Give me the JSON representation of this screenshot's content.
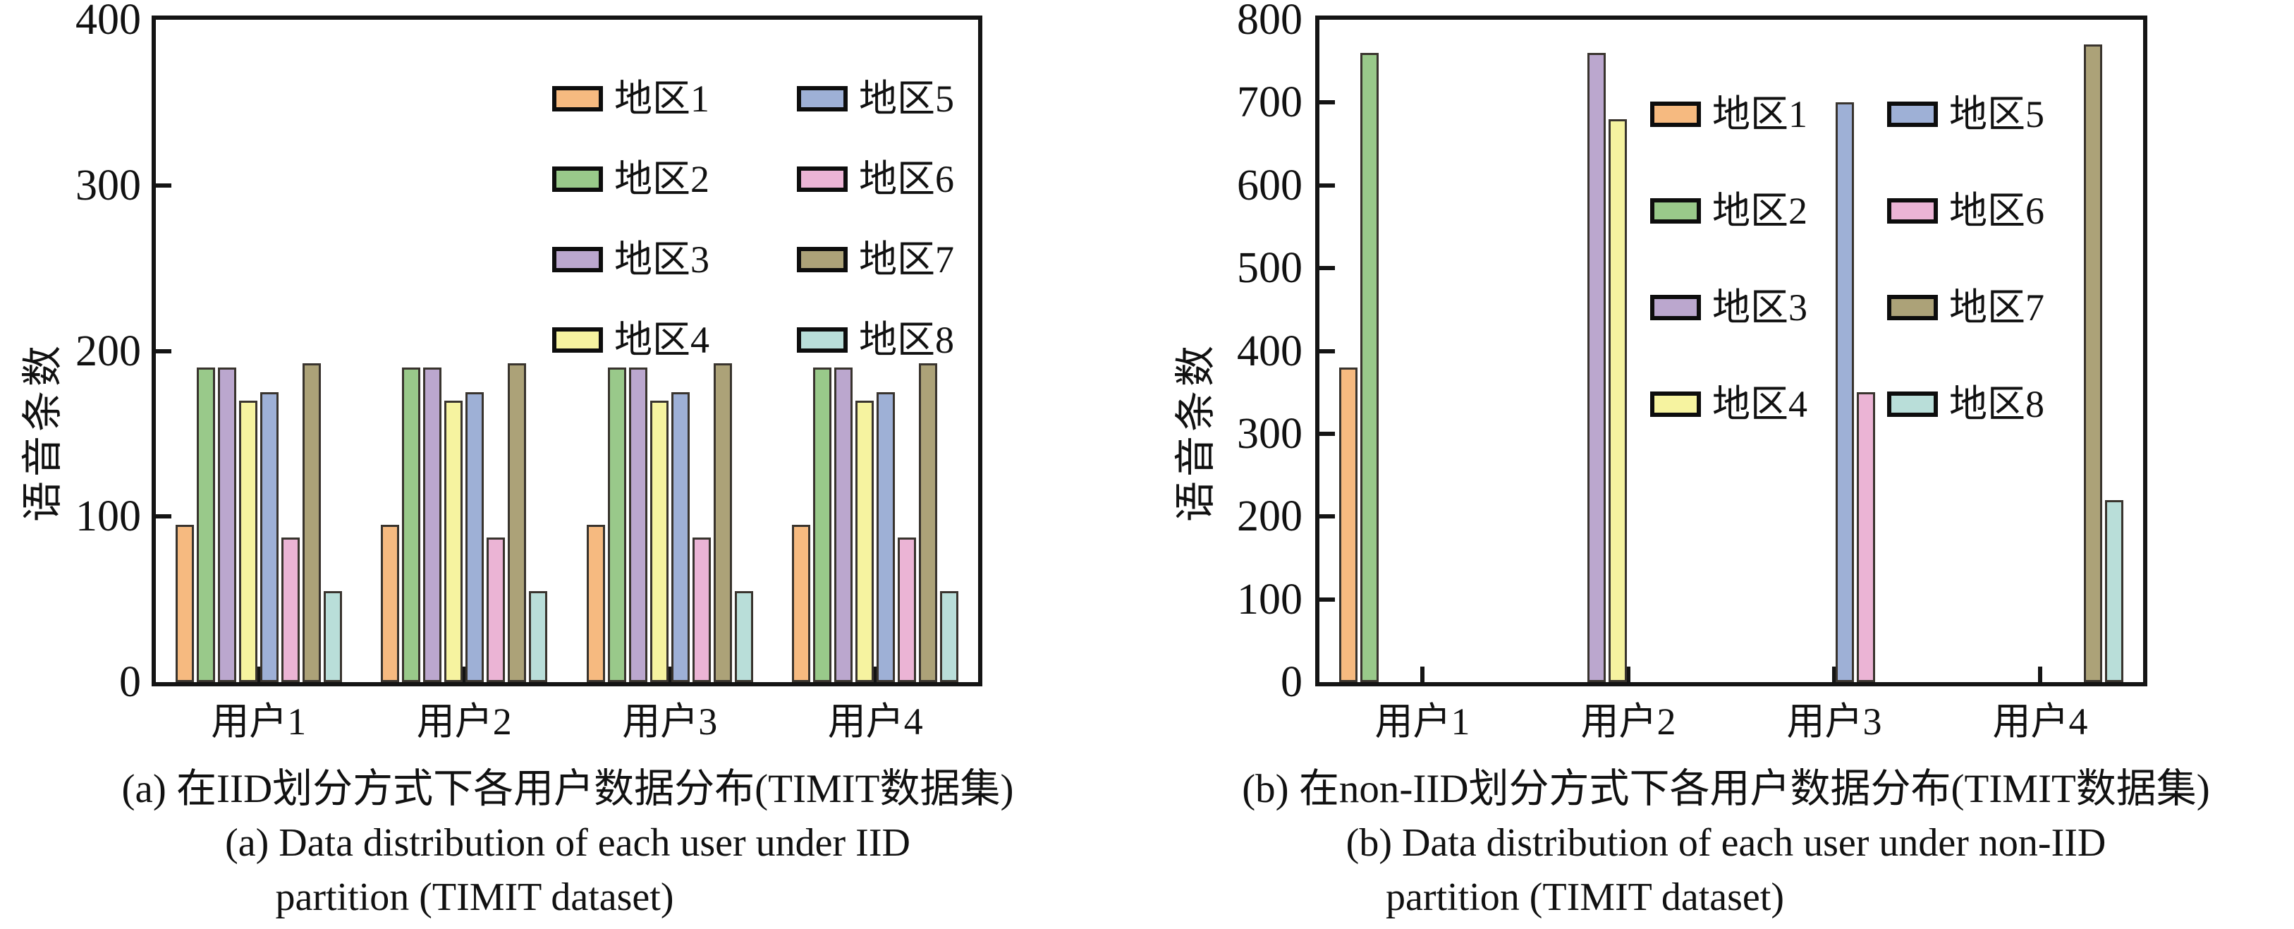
{
  "figure": {
    "background": "#ffffff",
    "frame_color": "#141414",
    "bar_edge_color": "#39342E"
  },
  "chart_data": [
    {
      "type": "bar",
      "panel_label": "a",
      "ylabel": "语音条数",
      "ylim": [
        0,
        400
      ],
      "yticks": [
        0,
        100,
        200,
        300,
        400
      ],
      "grid": false,
      "legend_position": "upper-center-two-columns",
      "categories": [
        "用户1",
        "用户2",
        "用户3",
        "用户4"
      ],
      "series": [
        {
          "name": "地区1",
          "color": "#F6BA80",
          "values": [
            95,
            95,
            95,
            95
          ]
        },
        {
          "name": "地区2",
          "color": "#99C98A",
          "values": [
            190,
            190,
            190,
            190
          ]
        },
        {
          "name": "地区3",
          "color": "#BBA7CE",
          "values": [
            190,
            190,
            190,
            190
          ]
        },
        {
          "name": "地区4",
          "color": "#F6F3A0",
          "values": [
            170,
            170,
            170,
            170
          ]
        },
        {
          "name": "地区5",
          "color": "#9EB0D6",
          "values": [
            175,
            175,
            175,
            175
          ]
        },
        {
          "name": "地区6",
          "color": "#EBB4D5",
          "values": [
            87.5,
            87.5,
            87.5,
            87.5
          ]
        },
        {
          "name": "地区7",
          "color": "#ACA278",
          "values": [
            192.5,
            192.5,
            192.5,
            192.5
          ]
        },
        {
          "name": "地区8",
          "color": "#B9DED9",
          "values": [
            55,
            55,
            55,
            55
          ]
        }
      ],
      "caption_zh": "(a) 在IID划分方式下各用户数据分布(TIMIT数据集)",
      "caption_en_line1": "(a) Data distribution of each user under IID",
      "caption_en_line2": "partition (TIMIT dataset)"
    },
    {
      "type": "bar",
      "panel_label": "b",
      "ylabel": "语音条数",
      "ylim": [
        0,
        800
      ],
      "yticks": [
        0,
        100,
        200,
        300,
        400,
        500,
        600,
        700,
        800
      ],
      "grid": false,
      "legend_position": "upper-right-two-columns",
      "categories": [
        "用户1",
        "用户2",
        "用户3",
        "用户4"
      ],
      "series": [
        {
          "name": "地区1",
          "color": "#F6BA80",
          "values": [
            380,
            0,
            0,
            0
          ]
        },
        {
          "name": "地区2",
          "color": "#99C98A",
          "values": [
            760,
            0,
            0,
            0
          ]
        },
        {
          "name": "地区3",
          "color": "#BBA7CE",
          "values": [
            0,
            760,
            0,
            0
          ]
        },
        {
          "name": "地区4",
          "color": "#F6F3A0",
          "values": [
            0,
            680,
            0,
            0
          ]
        },
        {
          "name": "地区5",
          "color": "#9EB0D6",
          "values": [
            0,
            0,
            700,
            0
          ]
        },
        {
          "name": "地区6",
          "color": "#EBB4D5",
          "values": [
            0,
            0,
            350,
            0
          ]
        },
        {
          "name": "地区7",
          "color": "#ACA278",
          "values": [
            0,
            0,
            0,
            770
          ]
        },
        {
          "name": "地区8",
          "color": "#B9DED9",
          "values": [
            0,
            0,
            0,
            220
          ]
        }
      ],
      "caption_zh": "(b) 在non-IID划分方式下各用户数据分布(TIMIT数据集)",
      "caption_en_line1": "(b) Data distribution of each user under non-IID",
      "caption_en_line2": "partition (TIMIT dataset)"
    }
  ]
}
